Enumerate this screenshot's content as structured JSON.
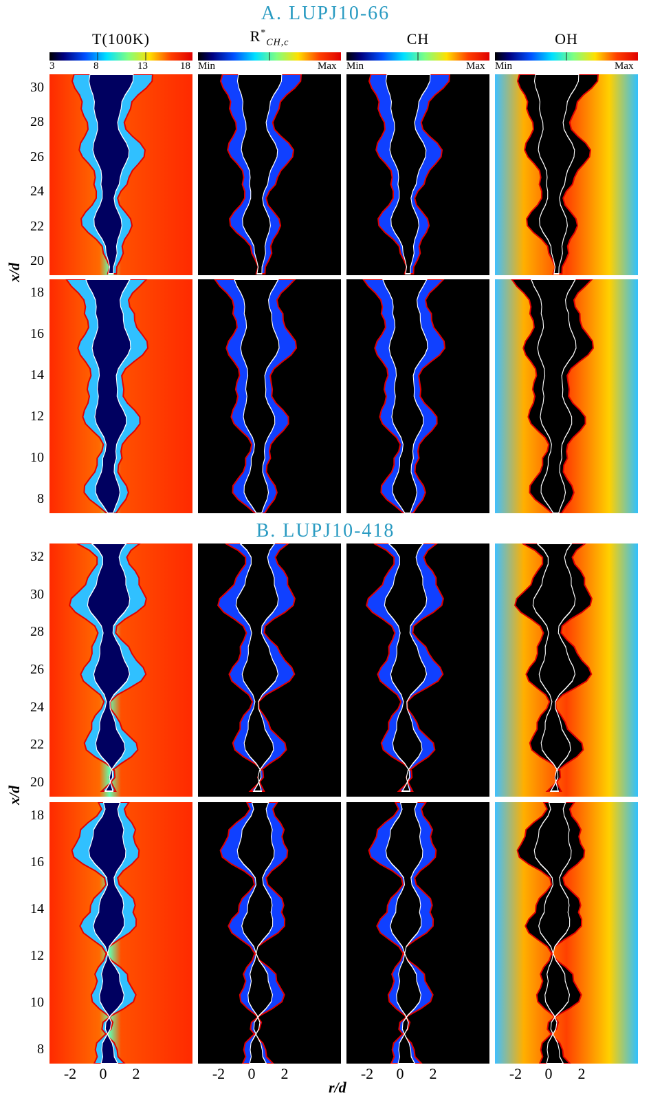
{
  "sections": [
    {
      "title": "A. LUPJ10-66",
      "accent": "#2a9bc2"
    },
    {
      "title": "B. LUPJ10-418",
      "accent": "#2a9bc2"
    }
  ],
  "columns": [
    {
      "label": "T(100K)",
      "ticks": [
        "3",
        "8",
        "13",
        "18"
      ]
    },
    {
      "label_main": "R",
      "label_sup": "*",
      "label_sub": "CH,c",
      "ticks": [
        "Min",
        "Max"
      ]
    },
    {
      "label": "CH",
      "ticks": [
        "Min",
        "Max"
      ]
    },
    {
      "label": "OH",
      "ticks": [
        "Min",
        "Max"
      ]
    }
  ],
  "y_axis": {
    "label": "x/d",
    "A_top_ticks": [
      "30",
      "28",
      "26",
      "24",
      "22",
      "20"
    ],
    "A_bottom_ticks": [
      "18",
      "16",
      "14",
      "12",
      "10",
      "8"
    ],
    "B_top_ticks": [
      "32",
      "30",
      "28",
      "26",
      "24",
      "22",
      "20"
    ],
    "B_bottom_ticks": [
      "18",
      "16",
      "14",
      "12",
      "10",
      "8"
    ]
  },
  "x_axis": {
    "label": "r/d",
    "ticks": [
      "-2",
      "0",
      "2"
    ]
  },
  "colors": {
    "jet_low": "#00007f",
    "jet_high": "#ff2a00",
    "contour_stoich": "#e00000",
    "contour_inner": "#ffffff"
  }
}
